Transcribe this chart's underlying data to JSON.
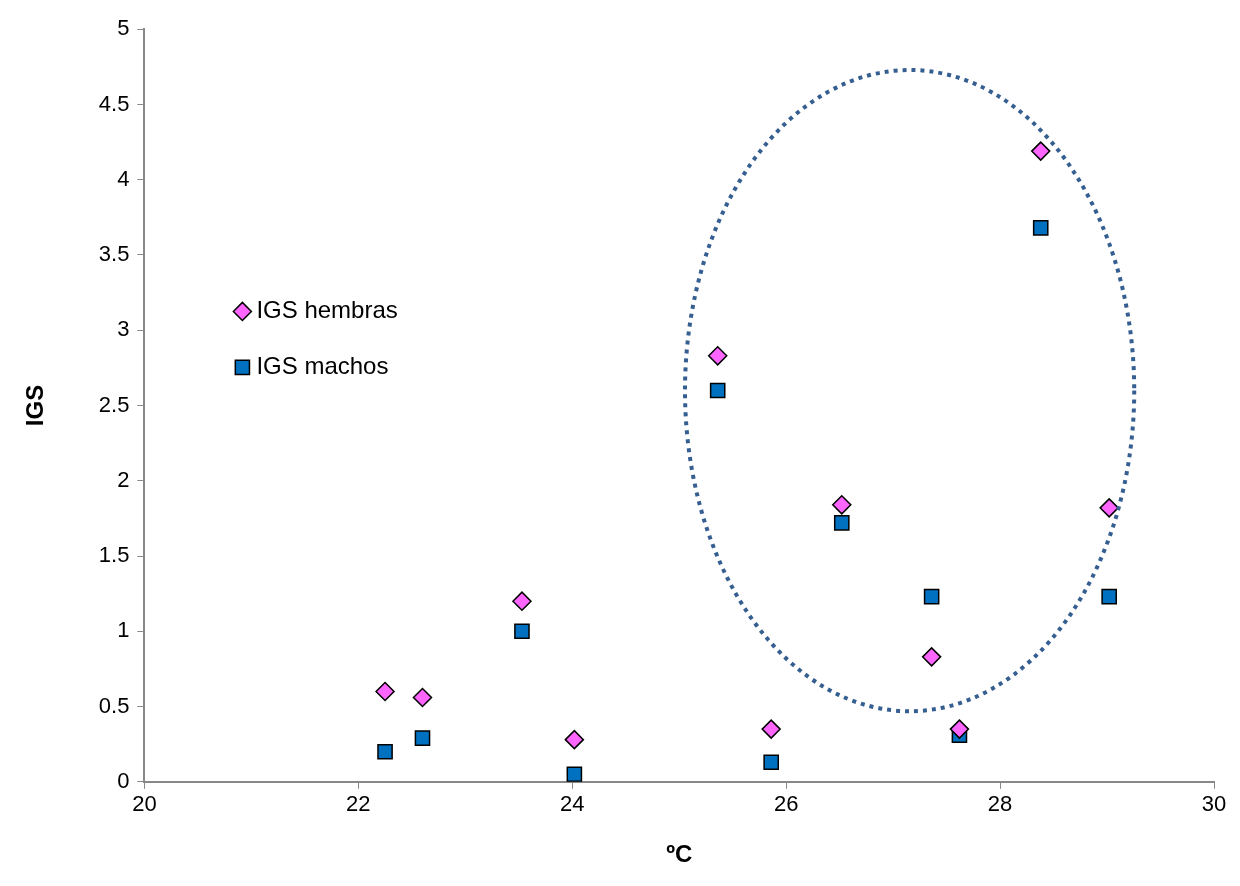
{
  "chart_data": {
    "type": "scatter",
    "xlabel": "ºC",
    "ylabel": "IGS",
    "xlim": [
      20,
      30
    ],
    "xticks": [
      20,
      22,
      24,
      26,
      28,
      30
    ],
    "ylim": [
      0,
      5
    ],
    "yticks": [
      0,
      0.5,
      1,
      1.5,
      2,
      2.5,
      3,
      3.5,
      4,
      4.5,
      5
    ],
    "grid": false,
    "legend": "left",
    "x": [
      22.25,
      22.6,
      23.53,
      24.02,
      25.36,
      25.86,
      26.52,
      27.36,
      27.62,
      28.38,
      29.02
    ],
    "series": [
      {
        "name": "IGS hembras",
        "color": "#ff66ff",
        "marker": "diamond",
        "values": [
          0.6,
          0.56,
          1.2,
          0.28,
          2.83,
          0.35,
          1.84,
          0.83,
          0.35,
          4.19,
          1.82
        ]
      },
      {
        "name": "IGS machos",
        "color": "#0070c0",
        "marker": "square",
        "values": [
          0.2,
          0.29,
          1.0,
          0.05,
          2.6,
          0.13,
          1.72,
          1.23,
          0.31,
          3.68,
          1.23
        ]
      }
    ]
  }
}
